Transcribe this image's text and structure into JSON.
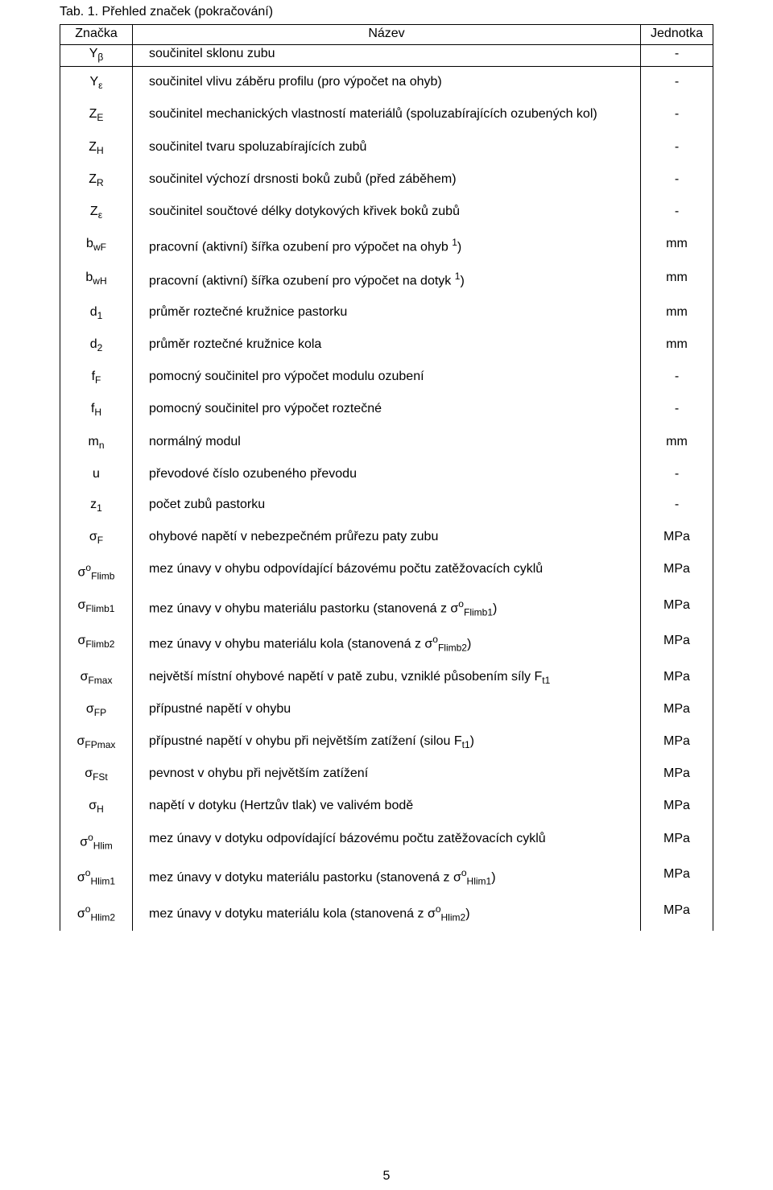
{
  "title": "Tab. 1. Přehled značek (pokračování)",
  "header": {
    "znacka": "Značka",
    "nazev": "Název",
    "jednotka": "Jednotka"
  },
  "rows": [
    {
      "z_html": "Y<span class='sub'>β</span>",
      "n": "součinitel sklonu zubu",
      "j": "-"
    },
    {
      "z_html": "Y<span class='sub'>ε</span>",
      "n": "součinitel vlivu záběru profilu (pro výpočet na ohyb)",
      "j": "-"
    },
    {
      "z_html": "Z<span class='sub'>E</span>",
      "n": "součinitel mechanických vlastností materiálů (spoluzabírajících ozubených kol)",
      "j": "-"
    },
    {
      "z_html": "Z<span class='sub'>H</span>",
      "n": "součinitel tvaru spoluzabírajících zubů",
      "j": "-"
    },
    {
      "z_html": "Z<span class='sub'>R</span>",
      "n": "součinitel výchozí drsnosti boků zubů (před záběhem)",
      "j": "-"
    },
    {
      "z_html": "Z<span class='sub'>ε</span>",
      "n": "součinitel součtové délky dotykových křivek boků zubů",
      "j": "-"
    },
    {
      "z_html": "b<span class='sub'>wF</span>",
      "n_html": "pracovní (aktivní) šířka ozubení pro výpočet na ohyb <span class='sup'>1</span>)",
      "j": "mm"
    },
    {
      "z_html": "b<span class='sub'>wH</span>",
      "n_html": "pracovní (aktivní) šířka ozubení pro výpočet na dotyk <span class='sup'>1</span>)",
      "j": "mm"
    },
    {
      "z_html": "d<span class='sub'>1</span>",
      "n": "průměr roztečné kružnice pastorku",
      "j": "mm"
    },
    {
      "z_html": "d<span class='sub'>2</span>",
      "n": "průměr roztečné kružnice kola",
      "j": "mm"
    },
    {
      "z_html": "f<span class='sub'>F</span>",
      "n": "pomocný součinitel pro výpočet modulu ozubení",
      "j": "-"
    },
    {
      "z_html": "f<span class='sub'>H</span>",
      "n": "pomocný součinitel pro výpočet roztečné",
      "j": "-"
    },
    {
      "z_html": "m<span class='sub'>n</span>",
      "n": "normálný modul",
      "j": "mm"
    },
    {
      "z_html": "u",
      "n": "převodové číslo ozubeného převodu",
      "j": "-"
    },
    {
      "z_html": "z<span class='sub'>1</span>",
      "n": "počet zubů pastorku",
      "j": "-"
    },
    {
      "z_html": "σ<span class='sub'>F</span>",
      "n": "ohybové napětí v nebezpečném průřezu paty zubu",
      "j": "MPa"
    },
    {
      "z_html": "σ<span class='sup'>o</span><span class='sub'>Flimb</span>",
      "n": "mez únavy v ohybu odpovídající bázovému počtu zatěžovacích cyklů",
      "j": "MPa"
    },
    {
      "z_html": "σ<span class='sub'>Flimb1</span>",
      "n_html": "mez únavy v ohybu materiálu pastorku (stanovená z σ<span class='sup'>o</span><span class='sub'>Flimb1</span>)",
      "j": "MPa"
    },
    {
      "z_html": "σ<span class='sub'>Flimb2</span>",
      "n_html": "mez únavy v ohybu materiálu kola (stanovená z σ<span class='sup'>o</span><span class='sub'>Flimb2</span>)",
      "j": "MPa"
    },
    {
      "z_html": "σ<span class='sub'>Fmax</span>",
      "n_html": "největší místní ohybové napětí v patě zubu, vzniklé působením síly F<span class='sub'>t1</span>",
      "j": "MPa"
    },
    {
      "z_html": "σ<span class='sub'>FP</span>",
      "n": "přípustné napětí v ohybu",
      "j": "MPa"
    },
    {
      "z_html": "σ<span class='sub'>FPmax</span>",
      "n_html": "přípustné napětí v ohybu při největším zatížení (silou F<span class='sub'>t1</span>)",
      "j": "MPa"
    },
    {
      "z_html": "σ<span class='sub'>FSt</span>",
      "n": "pevnost v ohybu při největším zatížení",
      "j": "MPa"
    },
    {
      "z_html": "σ<span class='sub'>H</span>",
      "n": "napětí v dotyku (Hertzův tlak) ve valivém bodě",
      "j": "MPa"
    },
    {
      "z_html": "σ<span class='sup'>o</span><span class='sub'>Hlim</span>",
      "n": "mez únavy v dotyku odpovídající bázovému počtu zatěžovacích cyklů",
      "j": "MPa"
    },
    {
      "z_html": "σ<span class='sup'>o</span><span class='sub'>Hlim1</span>",
      "n_html": "mez únavy v dotyku materiálu pastorku (stanovená z σ<span class='sup'>o</span><span class='sub'>Hlim1</span>)",
      "j": "MPa"
    },
    {
      "z_html": "σ<span class='sup'>o</span><span class='sub'>Hlim2</span>",
      "n_html": "mez únavy v dotyku materiálu kola (stanovená z σ<span class='sup'>o</span><span class='sub'>Hlim2</span>)",
      "j": "MPa"
    }
  ],
  "page_number": "5"
}
